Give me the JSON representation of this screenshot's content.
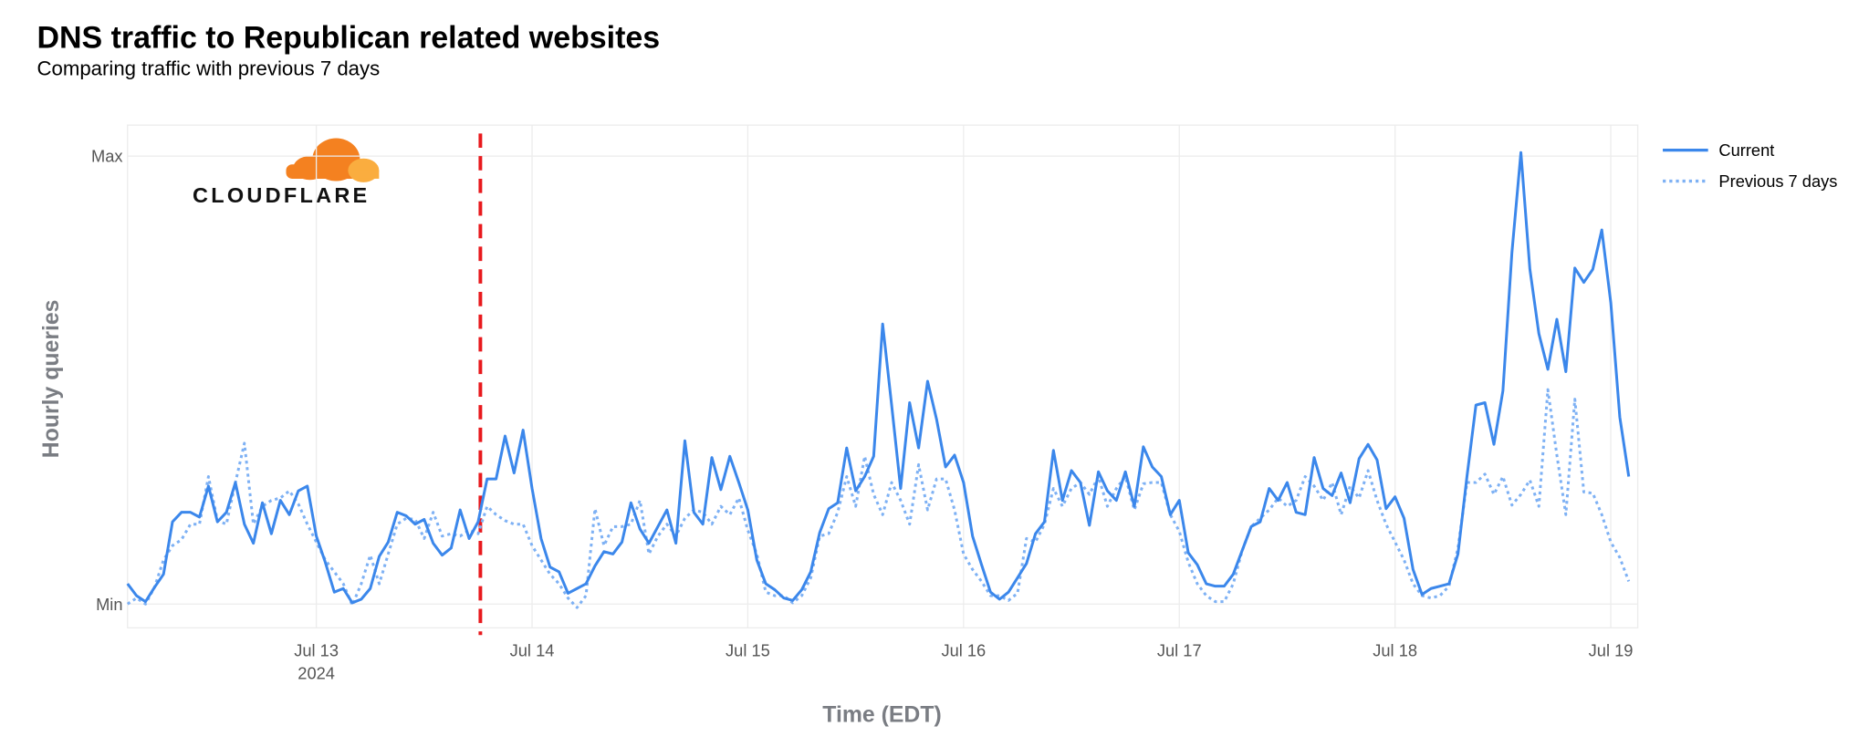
{
  "chart_data": {
    "type": "line",
    "title": "DNS traffic to Republican related websites",
    "subtitle": "Comparing traffic with previous 7 days",
    "ylabel": "Hourly queries",
    "xlabel": "Time (EDT)",
    "logo": "CLOUDFLARE",
    "x_year_label": "2024",
    "grid": true,
    "legend": "right",
    "ylim": [
      -20,
      402
    ],
    "yticks": [
      {
        "value": 0,
        "label": "Min"
      },
      {
        "value": 376,
        "label": "Max"
      }
    ],
    "xlim": [
      "2024-07-12T03:00",
      "2024-07-19T03:00"
    ],
    "xticks": [
      {
        "value": "2024-07-13T00:00",
        "label": "Jul 13"
      },
      {
        "value": "2024-07-14T00:00",
        "label": "Jul 14"
      },
      {
        "value": "2024-07-15T00:00",
        "label": "Jul 15"
      },
      {
        "value": "2024-07-16T00:00",
        "label": "Jul 16"
      },
      {
        "value": "2024-07-17T00:00",
        "label": "Jul 17"
      },
      {
        "value": "2024-07-18T00:00",
        "label": "Jul 18"
      },
      {
        "value": "2024-07-19T00:00",
        "label": "Jul 19"
      }
    ],
    "event_line": {
      "x": "2024-07-13T18:15",
      "color": "#e8191d"
    },
    "x": [
      "2024-07-12T03:00",
      "2024-07-12T04:00",
      "2024-07-12T05:00",
      "2024-07-12T06:00",
      "2024-07-12T07:00",
      "2024-07-12T08:00",
      "2024-07-12T09:00",
      "2024-07-12T10:00",
      "2024-07-12T11:00",
      "2024-07-12T12:00",
      "2024-07-12T13:00",
      "2024-07-12T14:00",
      "2024-07-12T15:00",
      "2024-07-12T16:00",
      "2024-07-12T17:00",
      "2024-07-12T18:00",
      "2024-07-12T19:00",
      "2024-07-12T20:00",
      "2024-07-12T21:00",
      "2024-07-12T22:00",
      "2024-07-12T23:00",
      "2024-07-13T00:00",
      "2024-07-13T01:00",
      "2024-07-13T02:00",
      "2024-07-13T03:00",
      "2024-07-13T04:00",
      "2024-07-13T05:00",
      "2024-07-13T06:00",
      "2024-07-13T07:00",
      "2024-07-13T08:00",
      "2024-07-13T09:00",
      "2024-07-13T10:00",
      "2024-07-13T11:00",
      "2024-07-13T12:00",
      "2024-07-13T13:00",
      "2024-07-13T14:00",
      "2024-07-13T15:00",
      "2024-07-13T16:00",
      "2024-07-13T17:00",
      "2024-07-13T18:00",
      "2024-07-13T19:00",
      "2024-07-13T20:00",
      "2024-07-13T21:00",
      "2024-07-13T22:00",
      "2024-07-13T23:00",
      "2024-07-14T00:00",
      "2024-07-14T01:00",
      "2024-07-14T02:00",
      "2024-07-14T03:00",
      "2024-07-14T04:00",
      "2024-07-14T05:00",
      "2024-07-14T06:00",
      "2024-07-14T07:00",
      "2024-07-14T08:00",
      "2024-07-14T09:00",
      "2024-07-14T10:00",
      "2024-07-14T11:00",
      "2024-07-14T12:00",
      "2024-07-14T13:00",
      "2024-07-14T14:00",
      "2024-07-14T15:00",
      "2024-07-14T16:00",
      "2024-07-14T17:00",
      "2024-07-14T18:00",
      "2024-07-14T19:00",
      "2024-07-14T20:00",
      "2024-07-14T21:00",
      "2024-07-14T22:00",
      "2024-07-14T23:00",
      "2024-07-15T00:00",
      "2024-07-15T01:00",
      "2024-07-15T02:00",
      "2024-07-15T03:00",
      "2024-07-15T04:00",
      "2024-07-15T05:00",
      "2024-07-15T06:00",
      "2024-07-15T07:00",
      "2024-07-15T08:00",
      "2024-07-15T09:00",
      "2024-07-15T10:00",
      "2024-07-15T11:00",
      "2024-07-15T12:00",
      "2024-07-15T13:00",
      "2024-07-15T14:00",
      "2024-07-15T15:00",
      "2024-07-15T16:00",
      "2024-07-15T17:00",
      "2024-07-15T18:00",
      "2024-07-15T19:00",
      "2024-07-15T20:00",
      "2024-07-15T21:00",
      "2024-07-15T22:00",
      "2024-07-15T23:00",
      "2024-07-16T00:00",
      "2024-07-16T01:00",
      "2024-07-16T02:00",
      "2024-07-16T03:00",
      "2024-07-16T04:00",
      "2024-07-16T05:00",
      "2024-07-16T06:00",
      "2024-07-16T07:00",
      "2024-07-16T08:00",
      "2024-07-16T09:00",
      "2024-07-16T10:00",
      "2024-07-16T11:00",
      "2024-07-16T12:00",
      "2024-07-16T13:00",
      "2024-07-16T14:00",
      "2024-07-16T15:00",
      "2024-07-16T16:00",
      "2024-07-16T17:00",
      "2024-07-16T18:00",
      "2024-07-16T19:00",
      "2024-07-16T20:00",
      "2024-07-16T21:00",
      "2024-07-16T22:00",
      "2024-07-16T23:00",
      "2024-07-17T00:00",
      "2024-07-17T01:00",
      "2024-07-17T02:00",
      "2024-07-17T03:00",
      "2024-07-17T04:00",
      "2024-07-17T05:00",
      "2024-07-17T06:00",
      "2024-07-17T07:00",
      "2024-07-17T08:00",
      "2024-07-17T09:00",
      "2024-07-17T10:00",
      "2024-07-17T11:00",
      "2024-07-17T12:00",
      "2024-07-17T13:00",
      "2024-07-17T14:00",
      "2024-07-17T15:00",
      "2024-07-17T16:00",
      "2024-07-17T17:00",
      "2024-07-17T18:00",
      "2024-07-17T19:00",
      "2024-07-17T20:00",
      "2024-07-17T21:00",
      "2024-07-17T22:00",
      "2024-07-17T23:00",
      "2024-07-18T00:00",
      "2024-07-18T01:00",
      "2024-07-18T02:00",
      "2024-07-18T03:00",
      "2024-07-18T04:00",
      "2024-07-18T05:00",
      "2024-07-18T06:00",
      "2024-07-18T07:00",
      "2024-07-18T08:00",
      "2024-07-18T09:00",
      "2024-07-18T10:00",
      "2024-07-18T11:00",
      "2024-07-18T12:00",
      "2024-07-18T13:00",
      "2024-07-18T14:00",
      "2024-07-18T15:00",
      "2024-07-18T16:00",
      "2024-07-18T17:00",
      "2024-07-18T18:00",
      "2024-07-18T19:00",
      "2024-07-18T20:00",
      "2024-07-18T21:00",
      "2024-07-18T22:00",
      "2024-07-18T23:00",
      "2024-07-19T00:00",
      "2024-07-19T01:00",
      "2024-07-19T02:00"
    ],
    "series": [
      {
        "name": "Current",
        "color": "#3b87eb",
        "dash": "solid",
        "values": [
          17,
          7,
          2,
          14,
          25,
          69,
          77,
          77,
          73,
          99,
          69,
          77,
          102,
          67,
          51,
          85,
          59,
          87,
          75,
          95,
          99,
          57,
          35,
          10,
          13,
          1,
          4,
          13,
          40,
          52,
          77,
          74,
          67,
          71,
          51,
          41,
          47,
          79,
          55,
          69,
          105,
          105,
          141,
          110,
          146,
          97,
          55,
          31,
          27,
          9,
          13,
          17,
          32,
          44,
          42,
          52,
          85,
          63,
          51,
          65,
          79,
          51,
          137,
          77,
          67,
          123,
          96,
          124,
          102,
          79,
          37,
          17,
          12,
          5,
          3,
          12,
          27,
          60,
          80,
          85,
          131,
          95,
          107,
          124,
          235,
          167,
          97,
          169,
          131,
          187,
          155,
          115,
          125,
          102,
          57,
          33,
          10,
          4,
          10,
          22,
          34,
          59,
          69,
          129,
          87,
          112,
          102,
          66,
          111,
          95,
          87,
          111,
          82,
          132,
          115,
          107,
          75,
          87,
          43,
          33,
          17,
          15,
          15,
          25,
          45,
          65,
          69,
          97,
          87,
          102,
          77,
          75,
          123,
          97,
          91,
          110,
          85,
          122,
          134,
          121,
          80,
          90,
          72,
          29,
          8,
          13,
          15,
          17,
          42,
          107,
          167,
          169,
          134,
          179,
          295,
          379,
          281,
          227,
          197,
          239,
          195,
          282,
          270,
          281,
          314,
          253,
          157,
          107
        ]
      },
      {
        "name": "Previous 7 days",
        "color": "#7eb1f4",
        "dash": "dotted",
        "values": [
          0,
          5,
          0,
          14,
          37,
          49,
          54,
          67,
          67,
          107,
          70,
          67,
          102,
          135,
          67,
          82,
          87,
          89,
          95,
          84,
          67,
          52,
          37,
          27,
          17,
          -1,
          17,
          41,
          17,
          42,
          67,
          72,
          71,
          55,
          77,
          57,
          59,
          57,
          62,
          59,
          82,
          75,
          70,
          67,
          67,
          49,
          37,
          25,
          17,
          5,
          -3,
          7,
          80,
          49,
          65,
          65,
          67,
          87,
          42,
          57,
          67,
          57,
          72,
          79,
          77,
          67,
          82,
          75,
          89,
          62,
          42,
          10,
          7,
          7,
          1,
          7,
          22,
          57,
          59,
          77,
          107,
          82,
          124,
          92,
          75,
          102,
          87,
          67,
          117,
          79,
          105,
          105,
          79,
          42,
          29,
          19,
          7,
          7,
          3,
          9,
          55,
          52,
          67,
          97,
          82,
          97,
          102,
          92,
          107,
          82,
          97,
          107,
          79,
          101,
          102,
          102,
          75,
          61,
          35,
          17,
          7,
          2,
          2,
          17,
          45,
          65,
          72,
          79,
          89,
          82,
          87,
          107,
          99,
          87,
          102,
          75,
          99,
          89,
          112,
          87,
          67,
          52,
          37,
          17,
          7,
          5,
          7,
          15,
          47,
          102,
          102,
          109,
          92,
          107,
          83,
          92,
          104,
          82,
          180,
          125,
          75,
          172,
          94,
          93,
          75,
          52,
          39,
          19
        ]
      }
    ]
  }
}
